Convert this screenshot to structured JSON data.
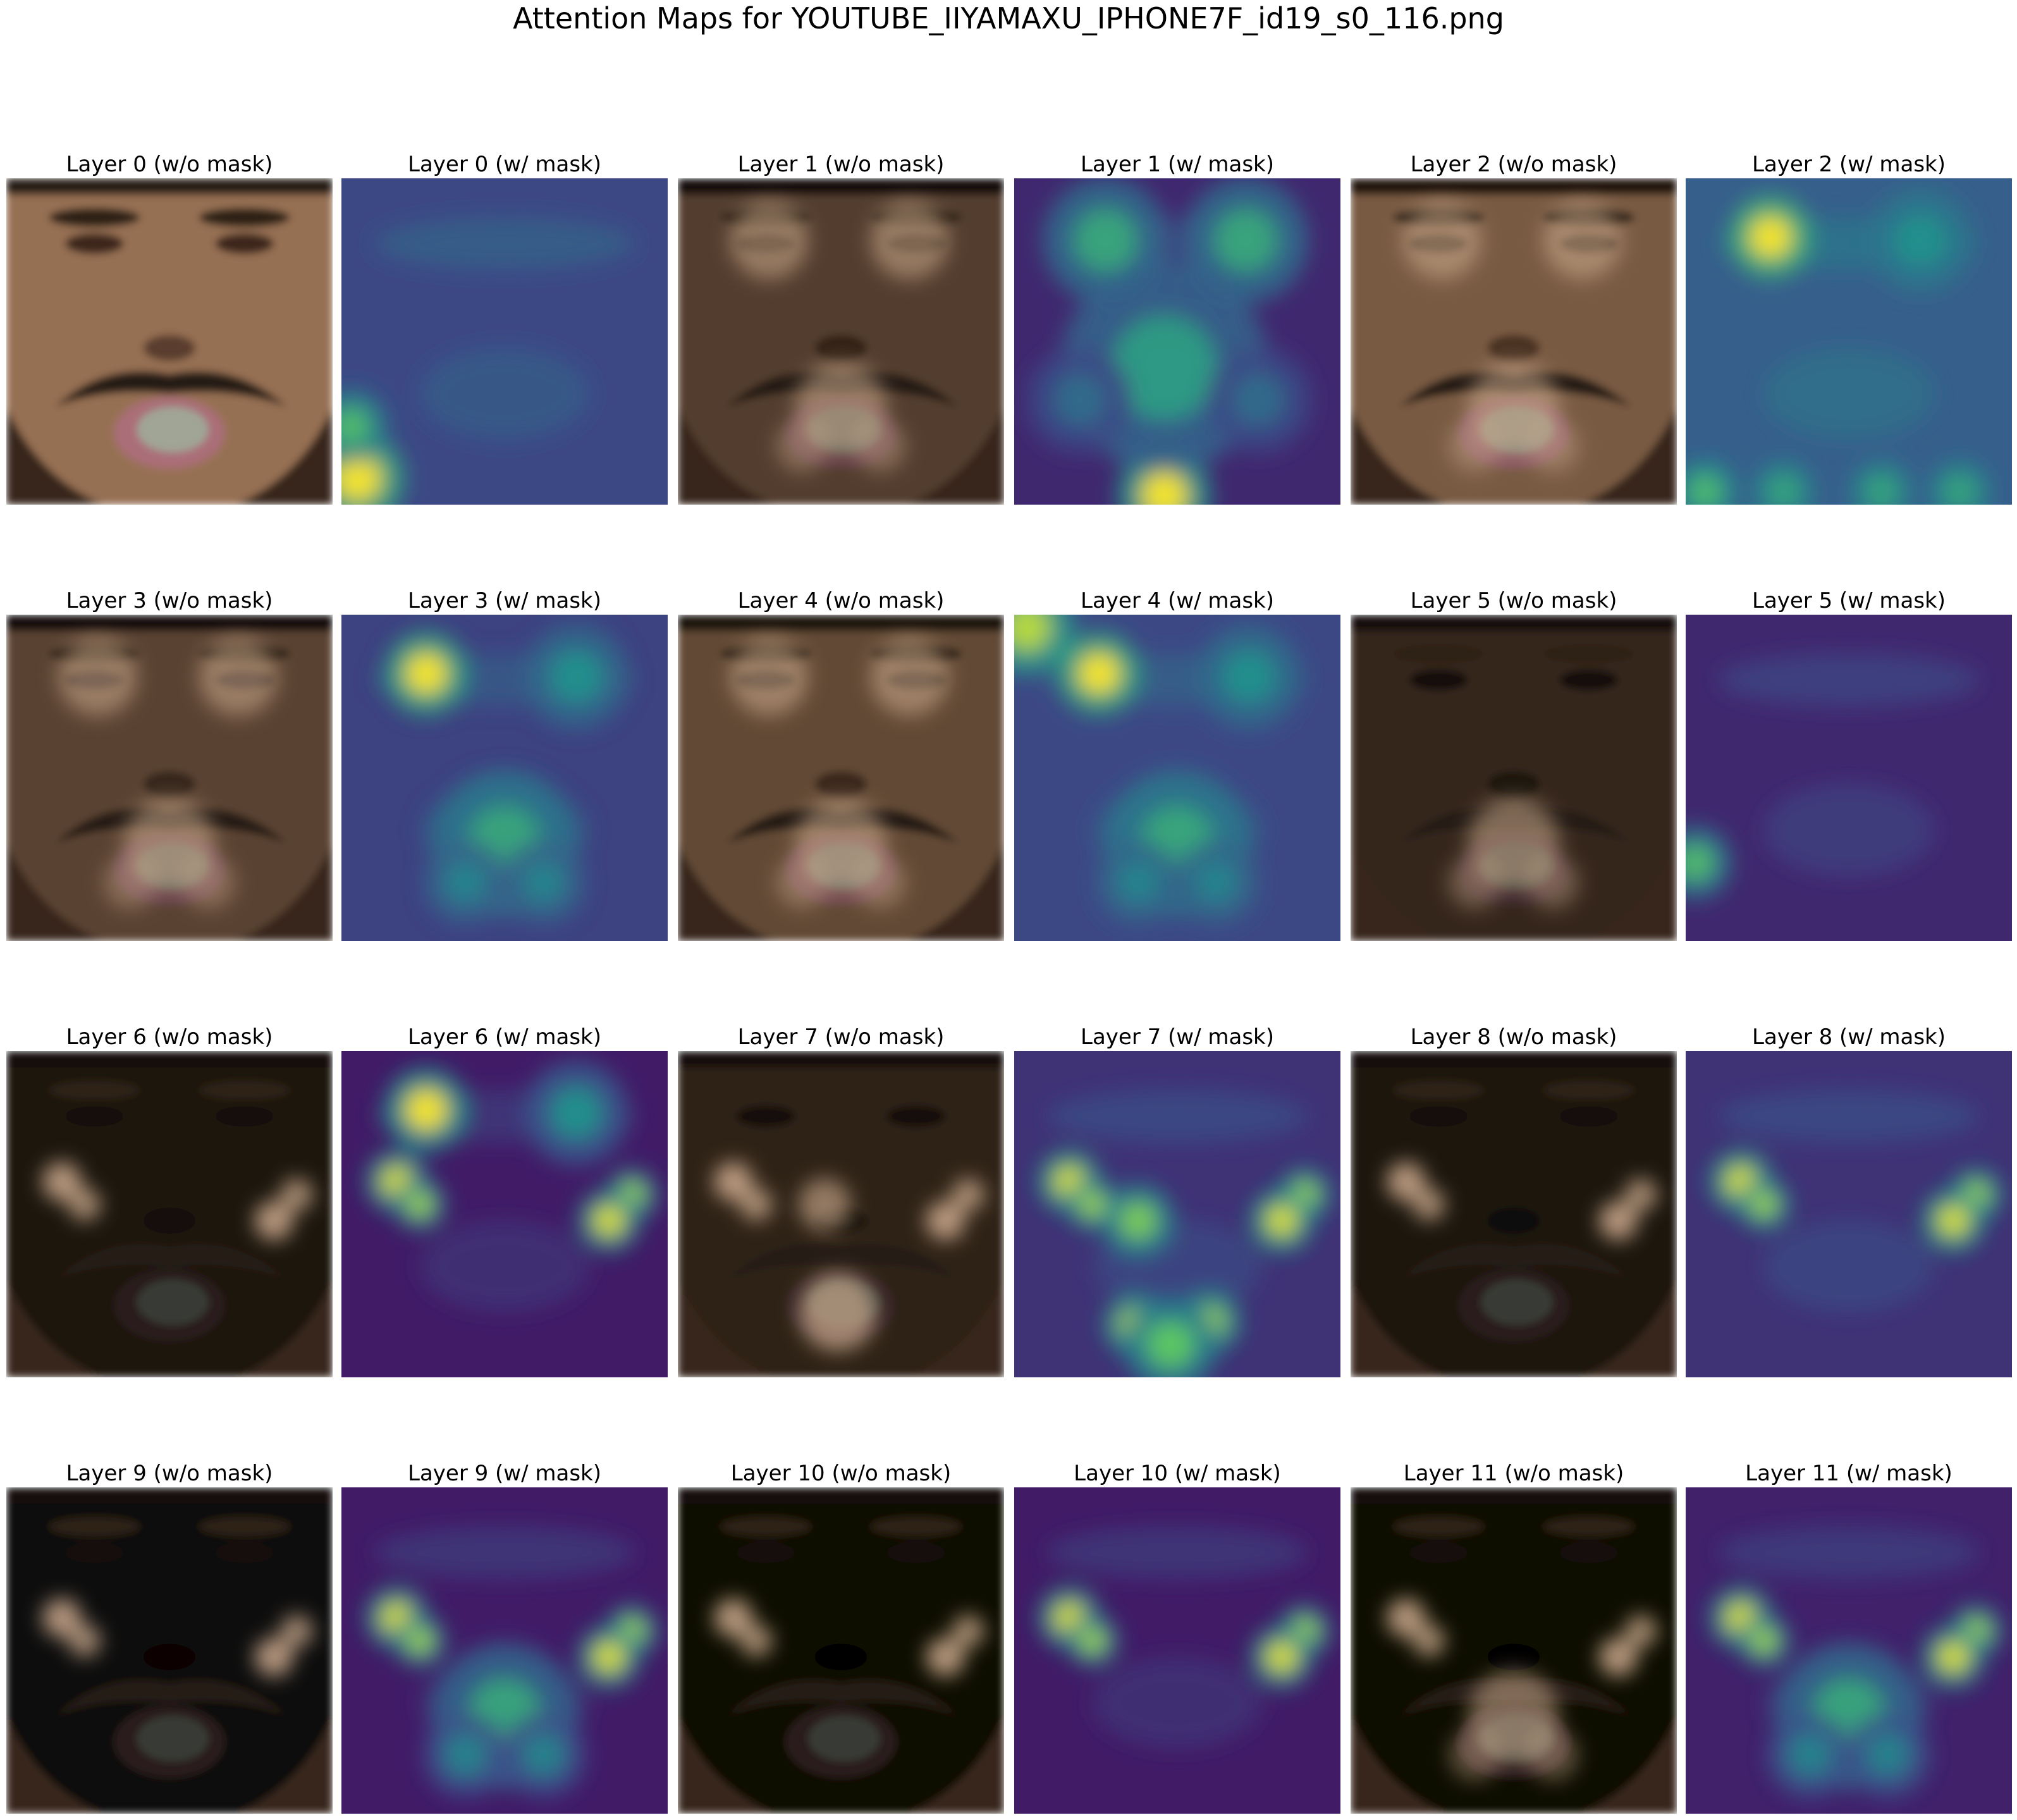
{
  "figure": {
    "title": "Attention Maps for YOUTUBE_IIYAMAXU_IPHONE7F_id19_s0_116.png"
  },
  "colormap": {
    "name": "viridis",
    "stops": [
      "#440154",
      "#3b528b",
      "#21918c",
      "#5ec962",
      "#fde725"
    ]
  },
  "panels": [
    {
      "layer": 0,
      "kind": "face",
      "title": "Layer 0 (w/o mask)",
      "brightness": 1.0,
      "hotspots": []
    },
    {
      "layer": 0,
      "kind": "heatmap",
      "title": "Layer 0 (w/ mask)",
      "base": 0.22,
      "hotspots": [
        "bottom-left corner",
        "left edge"
      ]
    },
    {
      "layer": 1,
      "kind": "face",
      "title": "Layer 1 (w/o mask)",
      "brightness": 0.55,
      "hotspots": [
        "eyes",
        "mouth"
      ]
    },
    {
      "layer": 1,
      "kind": "heatmap",
      "title": "Layer 1 (w/ mask)",
      "base": 0.12,
      "hotspots": [
        "bottom center",
        "eyes",
        "upper lip"
      ]
    },
    {
      "layer": 2,
      "kind": "face",
      "title": "Layer 2 (w/o mask)",
      "brightness": 0.8,
      "hotspots": [
        "eyes",
        "mouth"
      ]
    },
    {
      "layer": 2,
      "kind": "heatmap",
      "title": "Layer 2 (w/ mask)",
      "base": 0.3,
      "hotspots": [
        "left eye",
        "bottom row"
      ]
    },
    {
      "layer": 3,
      "kind": "face",
      "title": "Layer 3 (w/o mask)",
      "brightness": 0.6,
      "hotspots": [
        "eyes",
        "mouth"
      ]
    },
    {
      "layer": 3,
      "kind": "heatmap",
      "title": "Layer 3 (w/ mask)",
      "base": 0.2,
      "hotspots": [
        "left eye",
        "mouth"
      ]
    },
    {
      "layer": 4,
      "kind": "face",
      "title": "Layer 4 (w/o mask)",
      "brightness": 0.65,
      "hotspots": [
        "eyes",
        "mouth"
      ]
    },
    {
      "layer": 4,
      "kind": "heatmap",
      "title": "Layer 4 (w/ mask)",
      "base": 0.22,
      "hotspots": [
        "top-left corner",
        "left eye",
        "mouth"
      ]
    },
    {
      "layer": 5,
      "kind": "face",
      "title": "Layer 5 (w/o mask)",
      "brightness": 0.35,
      "hotspots": [
        "mouth"
      ]
    },
    {
      "layer": 5,
      "kind": "heatmap",
      "title": "Layer 5 (w/ mask)",
      "base": 0.12,
      "hotspots": [
        "left edge"
      ]
    },
    {
      "layer": 6,
      "kind": "face",
      "title": "Layer 6 (w/o mask)",
      "brightness": 0.2,
      "hotspots": [
        "left cheek",
        "right cheek"
      ]
    },
    {
      "layer": 6,
      "kind": "heatmap",
      "title": "Layer 6 (w/ mask)",
      "base": 0.08,
      "hotspots": [
        "left eye",
        "left cheek",
        "right cheek"
      ]
    },
    {
      "layer": 7,
      "kind": "face",
      "title": "Layer 7 (w/o mask)",
      "brightness": 0.3,
      "hotspots": [
        "cheeks",
        "nose",
        "lips"
      ]
    },
    {
      "layer": 7,
      "kind": "heatmap",
      "title": "Layer 7 (w/ mask)",
      "base": 0.15,
      "hotspots": [
        "cheeks",
        "mouth outline"
      ]
    },
    {
      "layer": 8,
      "kind": "face",
      "title": "Layer 8 (w/o mask)",
      "brightness": 0.18,
      "hotspots": [
        "left cheek",
        "right cheek"
      ]
    },
    {
      "layer": 8,
      "kind": "heatmap",
      "title": "Layer 8 (w/ mask)",
      "base": 0.15,
      "hotspots": [
        "left cheek",
        "right cheek"
      ]
    },
    {
      "layer": 9,
      "kind": "face",
      "title": "Layer 9 (w/o mask)",
      "brightness": 0.08,
      "hotspots": [
        "left cheek",
        "right cheek"
      ]
    },
    {
      "layer": 9,
      "kind": "heatmap",
      "title": "Layer 9 (w/ mask)",
      "base": 0.08,
      "hotspots": [
        "left cheek",
        "right cheek",
        "mouth"
      ]
    },
    {
      "layer": 10,
      "kind": "face",
      "title": "Layer 10 (w/o mask)",
      "brightness": 0.06,
      "hotspots": [
        "left cheek",
        "right cheek"
      ]
    },
    {
      "layer": 10,
      "kind": "heatmap",
      "title": "Layer 10 (w/ mask)",
      "base": 0.08,
      "hotspots": [
        "left cheek",
        "right cheek"
      ]
    },
    {
      "layer": 11,
      "kind": "face",
      "title": "Layer 11 (w/o mask)",
      "brightness": 0.06,
      "hotspots": [
        "left cheek",
        "right cheek",
        "mouth"
      ]
    },
    {
      "layer": 11,
      "kind": "heatmap",
      "title": "Layer 11 (w/ mask)",
      "base": 0.1,
      "hotspots": [
        "left cheek",
        "right cheek",
        "mouth"
      ]
    }
  ]
}
